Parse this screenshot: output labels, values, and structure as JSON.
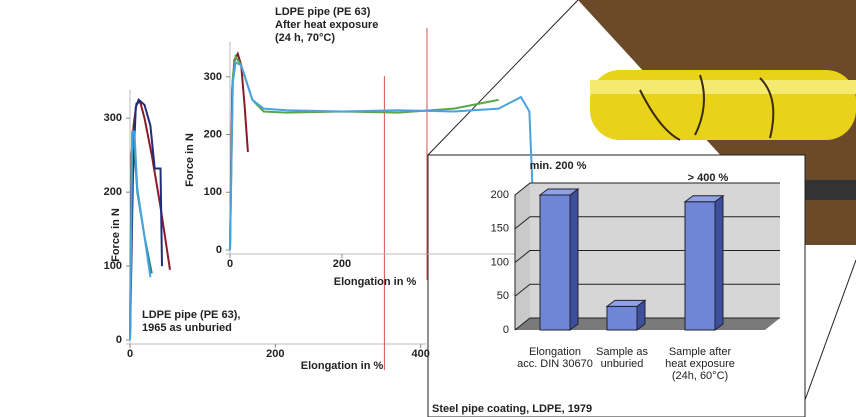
{
  "chart_data": [
    {
      "type": "line",
      "title": [
        "LDPE pipe (PE 63),",
        "1965 as unburied"
      ],
      "x_label": "Elongation in %",
      "y_label": "Force in N",
      "xlim": [
        0,
        410
      ],
      "ylim": [
        0,
        330
      ],
      "xticks": [
        0,
        200,
        400
      ],
      "yticks": [
        0,
        100,
        200,
        300
      ],
      "vlines": [
        {
          "x": 350,
          "color": "#d9534f"
        }
      ],
      "series": [
        {
          "color": "#8b1a2b",
          "x": [
            0,
            2,
            5,
            9,
            14,
            20,
            30,
            42,
            55
          ],
          "y": [
            0,
            250,
            290,
            320,
            322,
            300,
            250,
            180,
            95
          ]
        },
        {
          "color": "#1f2d7a",
          "x": [
            0,
            4,
            8,
            12,
            20,
            28,
            34,
            42,
            44
          ],
          "y": [
            0,
            220,
            315,
            325,
            318,
            290,
            232,
            232,
            100
          ]
        },
        {
          "color": "#1f8a78",
          "x": [
            0,
            3,
            6,
            10,
            20,
            30
          ],
          "y": [
            0,
            280,
            262,
            200,
            140,
            90
          ]
        },
        {
          "color": "#4aa3df",
          "x": [
            0,
            3,
            6,
            10,
            20,
            28
          ],
          "y": [
            0,
            282,
            282,
            205,
            140,
            85
          ]
        }
      ]
    },
    {
      "type": "line",
      "title": [
        "LDPE pipe (PE 63)",
        "After heat exposure",
        "(24 h, 70°C)"
      ],
      "x_label": "Elongation in %",
      "y_label": "Force in N",
      "xlim": [
        0,
        545
      ],
      "ylim": [
        0,
        350
      ],
      "xticks": [
        0,
        200
      ],
      "yticks": [
        0,
        100,
        200,
        300
      ],
      "vlines": [
        {
          "x": 352,
          "color": "#d9534f"
        }
      ],
      "series": [
        {
          "color": "#8b1a2b",
          "x": [
            0,
            4,
            8,
            14,
            20,
            26,
            32
          ],
          "y": [
            0,
            280,
            330,
            340,
            320,
            250,
            170
          ]
        },
        {
          "color": "#5aa845",
          "x": [
            0,
            5,
            10,
            20,
            40,
            60,
            100,
            200,
            300,
            400,
            480
          ],
          "y": [
            0,
            300,
            335,
            320,
            260,
            240,
            238,
            240,
            238,
            245,
            260
          ]
        },
        {
          "color": "#4aa3df",
          "x": [
            0,
            5,
            10,
            20,
            40,
            60,
            100,
            200,
            300,
            400,
            480,
            520,
            535,
            545
          ],
          "y": [
            0,
            290,
            325,
            320,
            260,
            245,
            242,
            240,
            242,
            240,
            245,
            265,
            240,
            0
          ]
        }
      ]
    },
    {
      "type": "bar3d",
      "caption": "Steel pipe coating, LDPE, 1979",
      "annotations": [
        "min. 200 %",
        "> 400 %"
      ],
      "categories": [
        [
          "Elongation",
          "acc. DIN 30670"
        ],
        [
          "Sample as",
          "unburied"
        ],
        [
          "Sample after",
          "heat exposure",
          "(24h, 60°C)"
        ]
      ],
      "values": [
        200,
        35,
        190
      ],
      "color": "#6f86d6",
      "ylim": [
        0,
        200
      ],
      "yticks": [
        0,
        50,
        100,
        150,
        200
      ],
      "grid": true
    }
  ]
}
